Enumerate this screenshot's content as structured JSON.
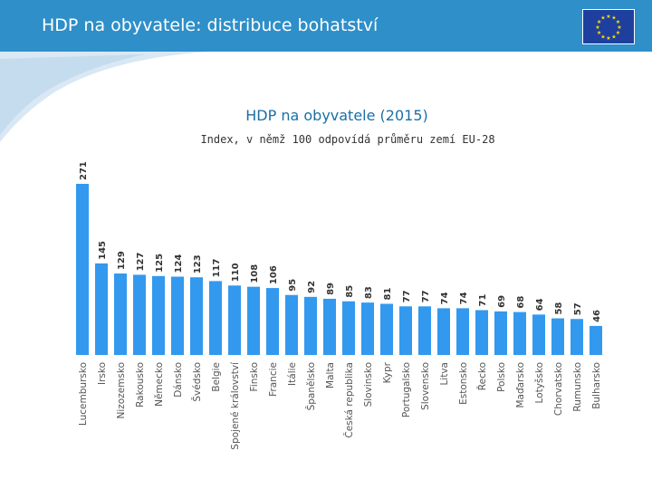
{
  "header": {
    "title": "HDP na obyvatele: distribuce bohatství",
    "flag_icon": "eu-flag-icon"
  },
  "colors": {
    "header_bg": "#2e8fc9",
    "bar": "#3399ee",
    "title": "#1a6fa6",
    "flag_bg": "#1f3f9e",
    "flag_stars": "#ffdd00"
  },
  "chart_data": {
    "type": "bar",
    "title": "HDP na obyvatele (2015)",
    "subtitle": "Index, v němž 100 odpovídá průměru zemí EU-28",
    "categories": [
      "Lucembursko",
      "Irsko",
      "Nizozemsko",
      "Rakousko",
      "Německo",
      "Dánsko",
      "Švédsko",
      "Belgie",
      "Spojené království",
      "Finsko",
      "Francie",
      "Itálie",
      "Španělsko",
      "Malta",
      "Česká republika",
      "Slovinsko",
      "Kypr",
      "Portugalsko",
      "Slovensko",
      "Litva",
      "Estonsko",
      "Řecko",
      "Polsko",
      "Maďarsko",
      "Lotyšsko",
      "Chorvatsko",
      "Rumunsko",
      "Bulharsko"
    ],
    "values": [
      271,
      145,
      129,
      127,
      125,
      124,
      123,
      117,
      110,
      108,
      106,
      95,
      92,
      89,
      85,
      83,
      81,
      77,
      77,
      74,
      74,
      71,
      69,
      68,
      64,
      58,
      57,
      46
    ],
    "ylim": [
      0,
      271
    ],
    "grid": false,
    "data_labels": true
  }
}
